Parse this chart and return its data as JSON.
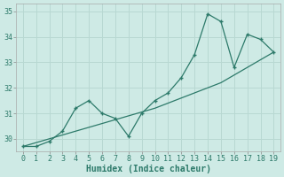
{
  "x": [
    0,
    1,
    2,
    3,
    4,
    5,
    6,
    7,
    8,
    9,
    10,
    11,
    12,
    13,
    14,
    15,
    16,
    17,
    18,
    19
  ],
  "y": [
    29.7,
    29.7,
    29.9,
    30.3,
    31.2,
    31.5,
    31.0,
    30.8,
    30.1,
    31.0,
    31.5,
    31.8,
    32.4,
    33.3,
    34.9,
    34.6,
    32.8,
    34.1,
    33.9,
    33.4
  ],
  "trend_y": [
    29.7,
    29.85,
    30.0,
    30.15,
    30.3,
    30.45,
    30.6,
    30.75,
    30.9,
    31.05,
    31.2,
    31.4,
    31.6,
    31.8,
    32.0,
    32.2,
    32.5,
    32.8,
    33.1,
    33.4
  ],
  "line_color": "#2d7a6a",
  "bg_color": "#ceeae5",
  "grid_color": "#b8d8d2",
  "xlabel": "Humidex (Indice chaleur)",
  "ylim": [
    29.5,
    35.3
  ],
  "xlim": [
    -0.5,
    19.5
  ],
  "yticks": [
    30,
    31,
    32,
    33,
    34,
    35
  ],
  "xticks": [
    0,
    1,
    2,
    3,
    4,
    5,
    6,
    7,
    8,
    9,
    10,
    11,
    12,
    13,
    14,
    15,
    16,
    17,
    18,
    19
  ],
  "tick_fontsize": 6,
  "xlabel_fontsize": 7
}
